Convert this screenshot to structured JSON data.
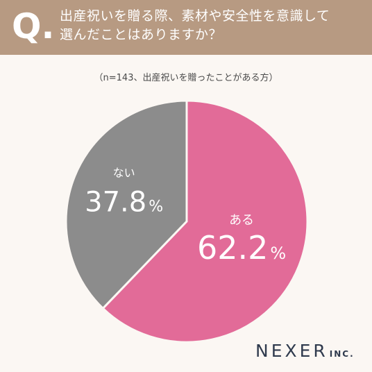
{
  "header": {
    "q_mark": "Q.",
    "question_line1": "出産祝いを贈る際、素材や安全性を意識して",
    "question_line2": "選んだことはありますか？"
  },
  "note": "（n=143、出産祝いを贈ったことがある方）",
  "chart_data": {
    "type": "pie",
    "title": "出産祝いを贈る際、素材や安全性を意識して選んだことはありますか？",
    "slices": [
      {
        "label": "ある",
        "value": 62.2,
        "color": "#e26b98"
      },
      {
        "label": "ない",
        "value": 37.8,
        "color": "#8c8c8c"
      }
    ],
    "start_angle_deg": 0,
    "direction": "clockwise",
    "value_suffix": "%"
  },
  "logo": {
    "main": "NEXER",
    "inc": "INC."
  }
}
